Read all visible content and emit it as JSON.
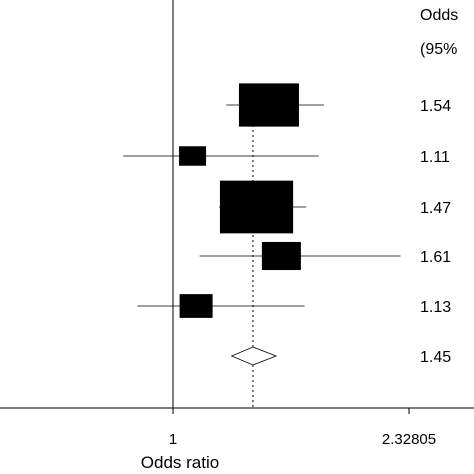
{
  "chart_data": {
    "type": "forest",
    "header": [
      "Odds",
      "(95%"
    ],
    "xlabel": "Odds ratio",
    "x_tick_labels": [
      "1",
      "2.32805"
    ],
    "x_ticks": [
      1,
      2.32805
    ],
    "reference_line": 1,
    "pooled_line": 1.45,
    "studies": [
      {
        "label": "1.54",
        "or": 1.54,
        "lower": 1.3,
        "upper": 1.85,
        "weight": 1.0
      },
      {
        "label": "1.11",
        "or": 1.11,
        "lower": 0.72,
        "upper": 1.82,
        "weight": 0.45
      },
      {
        "label": "1.47",
        "or": 1.47,
        "lower": 1.26,
        "upper": 1.75,
        "weight": 1.22
      },
      {
        "label": "1.61",
        "or": 1.61,
        "lower": 1.15,
        "upper": 2.28,
        "weight": 0.65
      },
      {
        "label": "1.13",
        "or": 1.13,
        "lower": 0.8,
        "upper": 1.74,
        "weight": 0.55
      }
    ],
    "pooled": {
      "label": "1.45",
      "or": 1.45,
      "lower": 1.33,
      "upper": 1.58
    }
  }
}
